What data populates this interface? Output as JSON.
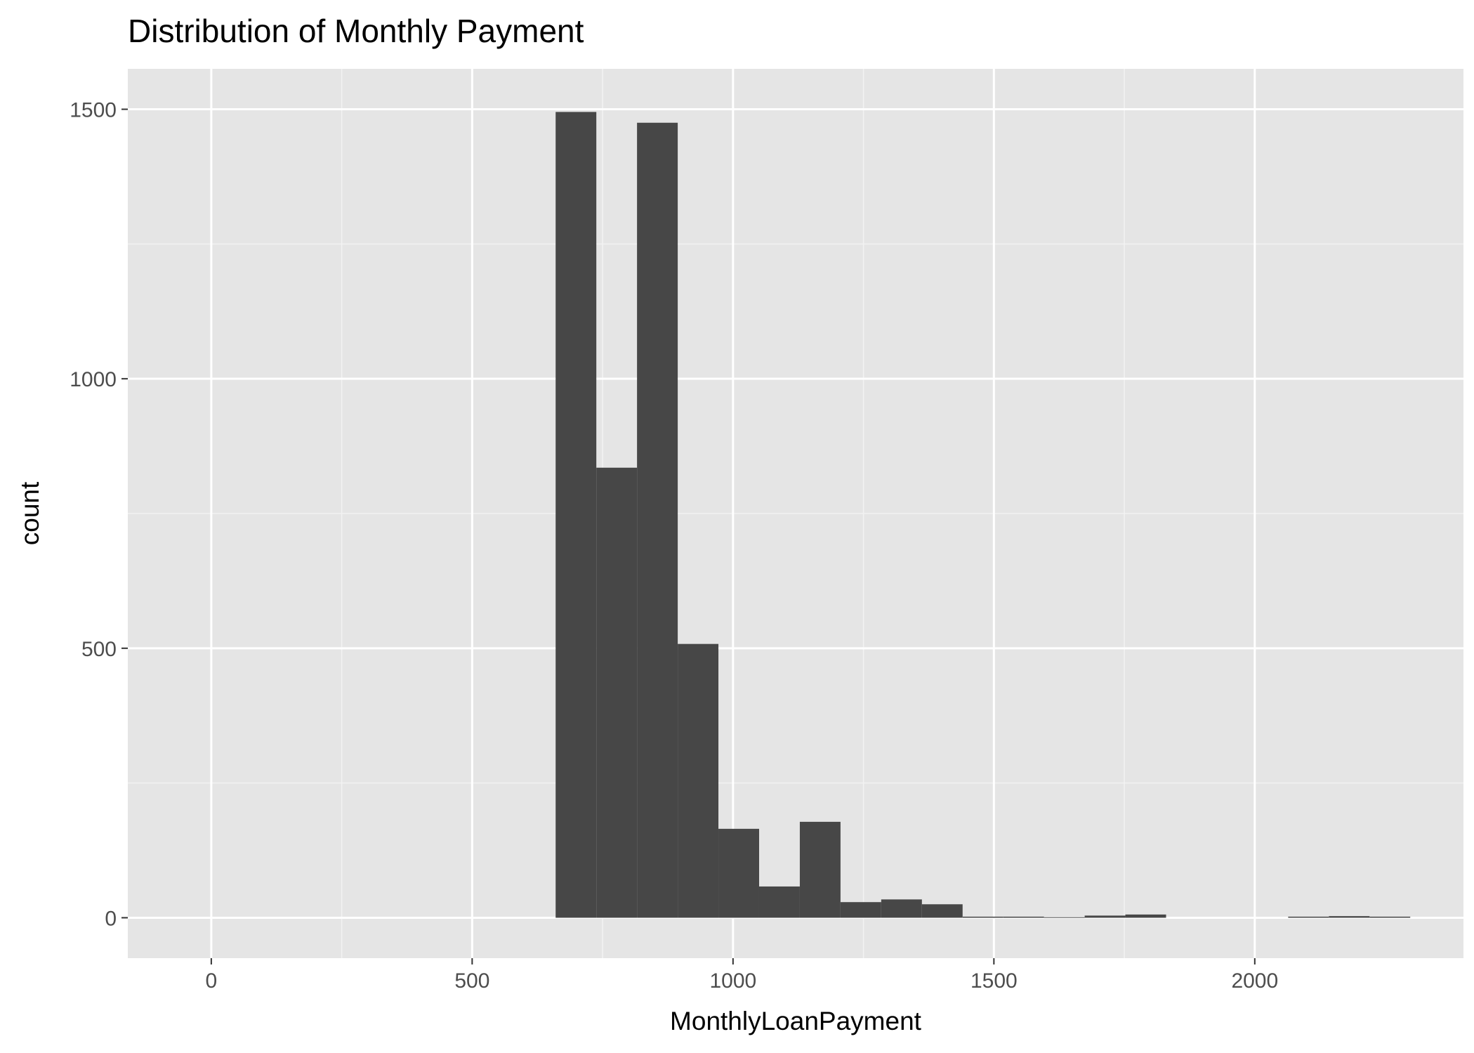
{
  "chart_data": {
    "type": "bar",
    "subtype": "histogram",
    "title": "Distribution of Monthly Payment",
    "xlabel": "MonthlyLoanPayment",
    "ylabel": "count",
    "xlim": [
      -160,
      2400
    ],
    "ylim": [
      -75,
      1575
    ],
    "x_ticks": [
      0,
      500,
      1000,
      1500,
      2000
    ],
    "x_tick_labels": [
      "0",
      "500",
      "1000",
      "1500",
      "2000"
    ],
    "y_ticks": [
      0,
      500,
      1000,
      1500
    ],
    "y_tick_labels": [
      "0",
      "500",
      "1000",
      "1500"
    ],
    "bin_width": 78,
    "bins": [
      {
        "start": 660,
        "end": 738,
        "count": 1495
      },
      {
        "start": 738,
        "end": 816,
        "count": 835
      },
      {
        "start": 816,
        "end": 894,
        "count": 1475
      },
      {
        "start": 894,
        "end": 972,
        "count": 508
      },
      {
        "start": 972,
        "end": 1050,
        "count": 165
      },
      {
        "start": 1050,
        "end": 1128,
        "count": 58
      },
      {
        "start": 1128,
        "end": 1206,
        "count": 178
      },
      {
        "start": 1206,
        "end": 1284,
        "count": 29
      },
      {
        "start": 1284,
        "end": 1362,
        "count": 34
      },
      {
        "start": 1362,
        "end": 1440,
        "count": 25
      },
      {
        "start": 1440,
        "end": 1518,
        "count": 2
      },
      {
        "start": 1518,
        "end": 1596,
        "count": 2
      },
      {
        "start": 1596,
        "end": 1674,
        "count": 1
      },
      {
        "start": 1674,
        "end": 1752,
        "count": 4
      },
      {
        "start": 1752,
        "end": 1830,
        "count": 6
      },
      {
        "start": 1830,
        "end": 1908,
        "count": 0
      },
      {
        "start": 1908,
        "end": 1986,
        "count": 0
      },
      {
        "start": 1986,
        "end": 2064,
        "count": 0
      },
      {
        "start": 2064,
        "end": 2142,
        "count": 2
      },
      {
        "start": 2142,
        "end": 2220,
        "count": 3
      },
      {
        "start": 2220,
        "end": 2298,
        "count": 2
      }
    ],
    "grid": true,
    "legend": "none",
    "colors": {
      "panel_background": "#e5e5e5",
      "grid_major": "#ffffff",
      "grid_minor": "#f2f2f2",
      "bar_fill": "#474747",
      "tick_text": "#4d4d4d",
      "tick_mark": "#333333"
    }
  }
}
